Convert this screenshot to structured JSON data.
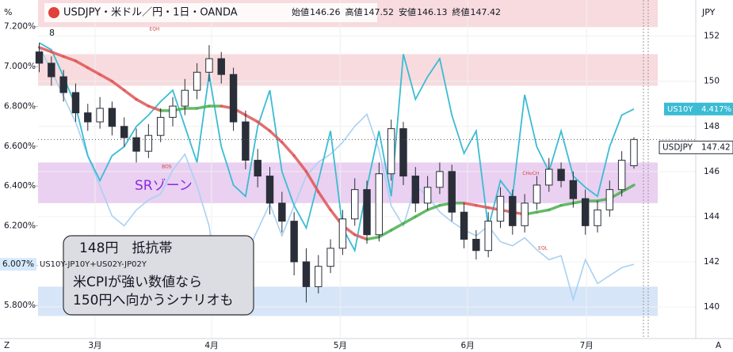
{
  "chart_data": {
    "type": "candlestick",
    "title": "USDJPY・米ドル／円・1日・OANDA",
    "header_count": "8",
    "ohlc_legend": [
      "始値",
      "高値",
      "安値",
      "終値"
    ],
    "left_axis_unit": "%",
    "right_axis_unit": "JPY",
    "corner_left": "Z",
    "corner_right": "A",
    "symbol": "USDJPY",
    "xlim": [
      -0.1,
      53.9
    ],
    "xticks": [
      {
        "value": 4.6,
        "label": "3月"
      },
      {
        "value": 14.2,
        "label": "4月"
      },
      {
        "value": 24.8,
        "label": "5月"
      },
      {
        "value": 35.3,
        "label": "6月"
      },
      {
        "value": 45.1,
        "label": "7月"
      }
    ],
    "ylim": [
      138.6,
      153.6
    ],
    "yticks": [
      140,
      142,
      144,
      146,
      148,
      150,
      152
    ],
    "y2lim": [
      5.634,
      7.334
    ],
    "y2ticks": [
      {
        "value": 5.8,
        "label": "5.800%"
      },
      {
        "value": 6.0,
        "label": "6.000%"
      },
      {
        "value": 6.2,
        "label": "6.200%"
      },
      {
        "value": 6.4,
        "label": "6.400%"
      },
      {
        "value": 6.6,
        "label": "6.600%"
      },
      {
        "value": 6.8,
        "label": "6.800%"
      },
      {
        "value": 7.0,
        "label": "7.000%"
      },
      {
        "value": 7.2,
        "label": "7.200%"
      }
    ],
    "y3lim": [
      3.4,
      4.9
    ],
    "candle_colors": {
      "up": "#ffffff",
      "down": "#2a2e39",
      "edge": "#2a2e39"
    },
    "open": [
      151.3,
      150.8,
      150.2,
      149.5,
      148.6,
      148.2,
      148.8,
      148.0,
      147.5,
      146.9,
      147.6,
      148.4,
      148.9,
      149.6,
      150.4,
      151.0,
      150.3,
      148.2,
      146.5,
      145.8,
      144.6,
      143.8,
      142.0,
      140.9,
      141.8,
      142.6,
      143.9,
      145.2,
      143.2,
      145.9,
      147.9,
      145.8,
      144.6,
      145.3,
      146.0,
      144.2,
      143.0,
      142.5,
      143.8,
      144.9,
      143.6,
      144.6,
      145.4,
      146.1,
      145.6,
      144.8,
      143.6,
      144.3,
      145.2,
      146.26
    ],
    "high": [
      151.7,
      151.1,
      150.5,
      149.9,
      149.0,
      149.3,
      149.1,
      148.4,
      147.9,
      148.1,
      148.8,
      149.3,
      150.1,
      150.8,
      151.6,
      151.3,
      150.6,
      148.7,
      147.0,
      146.2,
      145.1,
      144.2,
      142.6,
      142.3,
      143.0,
      144.3,
      145.7,
      145.6,
      146.4,
      148.3,
      148.2,
      146.2,
      145.8,
      146.4,
      146.3,
      144.6,
      143.4,
      144.2,
      145.3,
      145.2,
      145.0,
      145.8,
      146.6,
      146.4,
      146.0,
      145.2,
      144.7,
      145.6,
      146.9,
      147.52
    ],
    "low": [
      150.4,
      149.8,
      149.1,
      148.2,
      147.8,
      147.9,
      147.6,
      147.1,
      146.4,
      146.6,
      147.3,
      148.0,
      148.5,
      149.2,
      150.0,
      149.9,
      147.8,
      146.1,
      145.3,
      144.1,
      143.3,
      141.4,
      140.2,
      140.6,
      141.5,
      142.3,
      143.6,
      142.8,
      142.9,
      145.6,
      145.4,
      144.2,
      144.3,
      145.0,
      143.8,
      142.6,
      142.1,
      142.2,
      143.5,
      143.2,
      143.3,
      144.3,
      145.1,
      145.3,
      144.4,
      143.2,
      143.3,
      144.0,
      144.9,
      146.13
    ],
    "close": [
      150.8,
      150.2,
      149.5,
      148.6,
      148.2,
      148.8,
      148.0,
      147.5,
      146.9,
      147.6,
      148.4,
      148.9,
      149.6,
      150.4,
      151.0,
      150.3,
      148.2,
      146.5,
      145.8,
      144.6,
      143.8,
      142.0,
      140.9,
      141.8,
      142.6,
      143.9,
      145.2,
      143.2,
      145.9,
      147.9,
      145.8,
      144.6,
      145.3,
      146.0,
      144.2,
      143.0,
      142.5,
      143.8,
      144.9,
      143.6,
      144.6,
      145.4,
      146.1,
      145.6,
      144.8,
      143.6,
      144.3,
      145.2,
      146.5,
      147.42
    ],
    "ma": {
      "colors": {
        "up": "#4caf50",
        "down": "#e05555"
      },
      "values": [
        151.5,
        151.3,
        151.1,
        150.9,
        150.6,
        150.3,
        150.0,
        149.6,
        149.2,
        148.9,
        148.7,
        148.7,
        148.8,
        148.8,
        148.9,
        148.9,
        148.8,
        148.5,
        148.2,
        147.8,
        147.3,
        146.7,
        146.0,
        145.1,
        144.3,
        143.6,
        143.2,
        143.0,
        143.1,
        143.4,
        143.7,
        144.0,
        144.3,
        144.5,
        144.6,
        144.6,
        144.5,
        144.4,
        144.3,
        144.2,
        144.1,
        144.2,
        144.3,
        144.5,
        144.6,
        144.7,
        144.7,
        144.8,
        145.1,
        145.4
      ]
    },
    "series": [
      {
        "name": "US10Y-JP10Y+US02Y-JP02Y",
        "color": "#a9d1f2",
        "axis": "y2",
        "values": [
          7.1,
          6.98,
          6.85,
          6.72,
          6.55,
          6.4,
          6.25,
          6.2,
          6.28,
          6.33,
          6.36,
          6.48,
          6.56,
          6.4,
          6.2,
          5.76,
          5.95,
          6.05,
          6.18,
          6.31,
          6.15,
          6.3,
          6.45,
          6.52,
          6.56,
          6.62,
          6.7,
          6.76,
          6.58,
          6.3,
          6.2,
          6.4,
          6.35,
          6.27,
          6.22,
          6.18,
          6.15,
          6.2,
          6.12,
          6.1,
          6.14,
          6.08,
          6.03,
          6.05,
          5.83,
          6.03,
          5.91,
          5.95,
          5.99,
          6.007
        ],
        "value_labels": [
          null,
          null,
          null,
          null,
          null,
          null,
          null,
          null,
          null,
          null,
          null,
          null,
          null,
          null,
          null,
          null,
          null,
          null,
          null,
          null,
          null,
          null,
          null,
          null,
          null,
          null,
          null,
          null,
          null,
          null,
          null,
          null,
          null,
          null,
          null,
          null,
          null,
          null,
          null,
          null,
          null,
          null,
          null,
          null,
          null,
          null,
          null,
          null,
          null,
          "6.007%"
        ]
      },
      {
        "name": "US10Y",
        "color": "#3bbcd4",
        "axis": "y3",
        "values": [
          4.71,
          4.68,
          4.56,
          4.43,
          4.21,
          4.1,
          4.21,
          4.25,
          4.34,
          4.39,
          4.45,
          4.5,
          4.34,
          4.18,
          4.57,
          4.25,
          4.08,
          4.03,
          4.34,
          4.5,
          4.14,
          3.99,
          3.89,
          4.1,
          4.32,
          3.89,
          3.79,
          4.07,
          4.32,
          4.03,
          4.66,
          4.46,
          4.56,
          4.64,
          4.39,
          4.22,
          4.32,
          3.89,
          4.1,
          4.03,
          4.48,
          4.25,
          4.14,
          4.32,
          4.12,
          4.07,
          4.03,
          4.25,
          4.39,
          4.417
        ],
        "value_labels": [
          null,
          null,
          null,
          null,
          null,
          null,
          null,
          null,
          null,
          null,
          null,
          null,
          null,
          null,
          null,
          null,
          null,
          null,
          null,
          null,
          null,
          null,
          null,
          null,
          null,
          null,
          null,
          null,
          null,
          null,
          null,
          null,
          null,
          null,
          null,
          null,
          null,
          null,
          null,
          null,
          null,
          null,
          null,
          null,
          null,
          null,
          null,
          null,
          null,
          "4.417%"
        ]
      }
    ],
    "zones": [
      {
        "from": 152.4,
        "to": 153.6,
        "color": "#f6d5d8"
      },
      {
        "from": 149.8,
        "to": 151.2,
        "color": "#f6d5d8"
      },
      {
        "from": 144.6,
        "to": 146.4,
        "color": "#e6c8ee",
        "label": "SRゾーン"
      },
      {
        "from": 139.6,
        "to": 140.9,
        "color": "#cfe0f6"
      }
    ],
    "annotation": [
      "148円　抵抗帯",
      "米CPIが強い数値なら",
      "150円へ向かうシナリオも"
    ],
    "markers": [
      {
        "text": "EQH",
        "x": 9.5,
        "y": 152.3
      },
      {
        "text": "BOS",
        "x": 10.5,
        "y": 146.2
      },
      {
        "text": "CHoCH",
        "x": 40.5,
        "y": 145.9
      },
      {
        "text": "EQL",
        "x": 41.5,
        "y": 142.6
      }
    ]
  }
}
